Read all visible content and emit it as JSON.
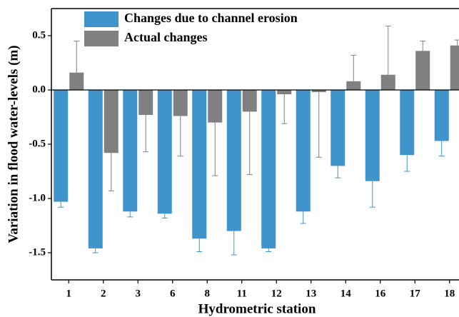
{
  "chart_data": {
    "type": "bar",
    "x_label": "Hydrometric station",
    "y_label": "Variation in flood water-levels (m)",
    "categories": [
      "1",
      "2",
      "3",
      "6",
      "8",
      "11",
      "12",
      "13",
      "14",
      "16",
      "17",
      "18"
    ],
    "series": [
      {
        "name": "Changes due to channel erosion",
        "color": "#3f94cc",
        "values": [
          -1.03,
          -1.46,
          -1.12,
          -1.14,
          -1.37,
          -1.3,
          -1.46,
          -1.12,
          -0.7,
          -0.84,
          -0.6,
          -0.47
        ],
        "errors": [
          0.05,
          0.04,
          0.05,
          0.04,
          0.12,
          0.22,
          0.03,
          0.11,
          0.11,
          0.24,
          0.15,
          0.14
        ]
      },
      {
        "name": "Actual changes",
        "color": "#808080",
        "values": [
          0.16,
          -0.58,
          -0.23,
          -0.24,
          -0.3,
          -0.2,
          -0.04,
          -0.02,
          0.08,
          0.14,
          0.36,
          0.41
        ],
        "errors": [
          0.29,
          0.35,
          0.34,
          0.37,
          0.49,
          0.58,
          0.27,
          0.6,
          0.24,
          0.45,
          0.09,
          0.05
        ]
      }
    ],
    "ylim": [
      -1.75,
      0.75
    ],
    "yticks": [
      {
        "value": -1.5,
        "label": "-1.5"
      },
      {
        "value": -1.0,
        "label": "-1.0"
      },
      {
        "value": -0.5,
        "label": "-0.5"
      },
      {
        "value": 0,
        "label": "0.0"
      },
      {
        "value": 0.5,
        "label": "0.5"
      }
    ],
    "legend": "upper left"
  }
}
